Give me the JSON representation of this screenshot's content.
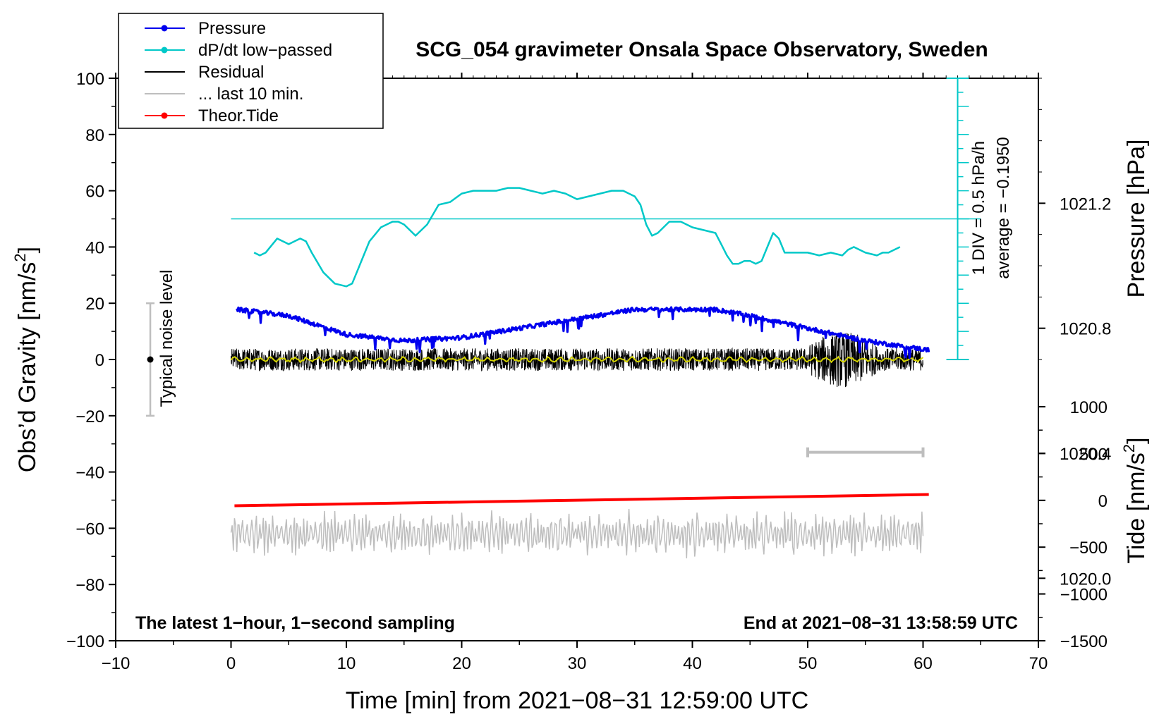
{
  "chart_data": {
    "type": "line",
    "title": "SCG_054 gravimeter Onsala Space Observatory, Sweden",
    "xlabel": "Time [min] from 2021−08−31 12:59:00 UTC",
    "ylabel_left": "Obs’d Gravity [nm/s2]",
    "ylabel_left_main": "Obs’d Gravity [nm/s",
    "ylabel_left_sup": "2",
    "ylabel_left_end": "]",
    "ylabel_right_top": "Pressure [hPa]",
    "ylabel_right_bottom": "Tide [nm/s2]",
    "ylabel_right_bottom_main": "Tide [nm/s",
    "ylabel_right_bottom_sup": "2",
    "ylabel_right_bottom_end": "]",
    "xlim": [
      -10,
      70
    ],
    "ylim": [
      -100,
      100
    ],
    "x_ticks": [
      "−10",
      "0",
      "10",
      "20",
      "30",
      "40",
      "50",
      "60",
      "70"
    ],
    "x_tick_values": [
      -10,
      0,
      10,
      20,
      30,
      40,
      50,
      60,
      70
    ],
    "y_ticks": [
      "100",
      "80",
      "60",
      "40",
      "20",
      "0",
      "−20",
      "−40",
      "−60",
      "−80",
      "−100"
    ],
    "y_tick_values": [
      100,
      80,
      60,
      40,
      20,
      0,
      -20,
      -40,
      -60,
      -80,
      -100
    ],
    "pressure_axis": {
      "ticks": [
        "1021.2",
        "1020.8",
        "1020.4",
        "1020.0"
      ],
      "values": [
        1021.2,
        1020.8,
        1020.4,
        1020.0
      ],
      "range_hpa": [
        1019.8,
        1021.6
      ]
    },
    "tide_axis": {
      "ticks": [
        "1000",
        "500",
        "0",
        "−500",
        "−1000",
        "−1500"
      ],
      "values": [
        1000,
        500,
        0,
        -500,
        -1000,
        -1500
      ],
      "range": [
        -1500,
        1000
      ]
    },
    "legend": [
      {
        "label": "Pressure",
        "color": "#0000ee",
        "marker": true
      },
      {
        "label": "dP/dt low−passed",
        "color": "#00c8c8",
        "marker": true
      },
      {
        "label": "Residual",
        "color": "#000000",
        "marker": false
      },
      {
        "label": "... last 10 min.",
        "color": "#bebebe",
        "marker": false
      },
      {
        "label": "Theor.Tide",
        "color": "#ff0000",
        "marker": true
      }
    ],
    "annotations": {
      "noise_label": "Typical noise level",
      "noise_range": [
        -20,
        20
      ],
      "noise_x": -7,
      "scale_div": "1 DIV = 0.5 hPa/h",
      "scale_avg": "average = −0.1950",
      "scale_x": 63,
      "scale_range": [
        0,
        100
      ],
      "scale_baseline": 50,
      "footer_left": "The latest 1−hour, 1−second sampling",
      "footer_right": "End at 2021−08−31 13:58:59 UTC",
      "last10_bar_x": [
        50,
        60
      ],
      "last10_bar_y": -33
    },
    "series": [
      {
        "name": "Pressure",
        "color": "#0000ee",
        "unit": "hPa",
        "x": [
          0.5,
          5,
          10,
          15,
          20,
          25,
          30,
          35,
          40,
          42,
          45,
          50,
          55,
          60.5
        ],
        "y": [
          1020.86,
          1020.84,
          1020.78,
          1020.76,
          1020.77,
          1020.8,
          1020.83,
          1020.86,
          1020.86,
          1020.86,
          1020.84,
          1020.8,
          1020.76,
          1020.73
        ]
      },
      {
        "name": "dP/dt low−passed",
        "color": "#00c8c8",
        "unit": "nm/s2 equiv",
        "x": [
          2,
          2.5,
          3,
          4,
          5,
          5.5,
          6,
          6.5,
          7,
          8,
          9,
          10,
          10.5,
          11,
          12,
          13,
          14,
          14.5,
          15,
          16,
          17,
          18,
          19,
          20,
          21,
          22,
          23,
          24,
          25,
          26,
          27,
          28,
          29,
          30,
          31,
          32,
          33,
          34,
          35,
          35.5,
          36,
          36.5,
          37,
          38,
          38.5,
          39,
          40,
          41,
          42,
          42.5,
          43,
          43.5,
          44,
          44.5,
          45,
          45.5,
          46,
          46.5,
          47,
          47.5,
          48,
          49,
          50,
          51,
          52,
          53,
          53.5,
          54,
          55,
          56,
          56.5,
          57,
          57.5,
          58
        ],
        "y": [
          38,
          37,
          38,
          43,
          41,
          42,
          43,
          42,
          38,
          31,
          27,
          26,
          27,
          32,
          42,
          47,
          49,
          49,
          48,
          44,
          48,
          55,
          56,
          59,
          60,
          60,
          60,
          61,
          61,
          60,
          59,
          60,
          59,
          57,
          58,
          59,
          60,
          60,
          58,
          55,
          48,
          44,
          45,
          49,
          49,
          49,
          47,
          46,
          45,
          41,
          37,
          34,
          34,
          35,
          35,
          34,
          35,
          40,
          45,
          43,
          38,
          38,
          38,
          37,
          38,
          37,
          39,
          40,
          38,
          37,
          38,
          38,
          39,
          40
        ]
      },
      {
        "name": "Residual",
        "color": "#000000",
        "x_range": [
          0,
          60
        ],
        "mean": 0,
        "noise_amp": 4,
        "burst_x": [
          50,
          56
        ],
        "burst_amp": 10
      },
      {
        "name": "Residual smoothed",
        "color": "#d4d400",
        "x_range": [
          0,
          60
        ],
        "mean": 0
      },
      {
        "name": "... last 10 min.",
        "color": "#bebebe",
        "x_range": [
          0,
          60
        ],
        "center": -62,
        "amp": 8
      },
      {
        "name": "Theor.Tide",
        "color": "#ff0000",
        "unit": "nm/s2",
        "x": [
          0.3,
          60.5
        ],
        "y": [
          -52,
          -48
        ]
      }
    ]
  }
}
